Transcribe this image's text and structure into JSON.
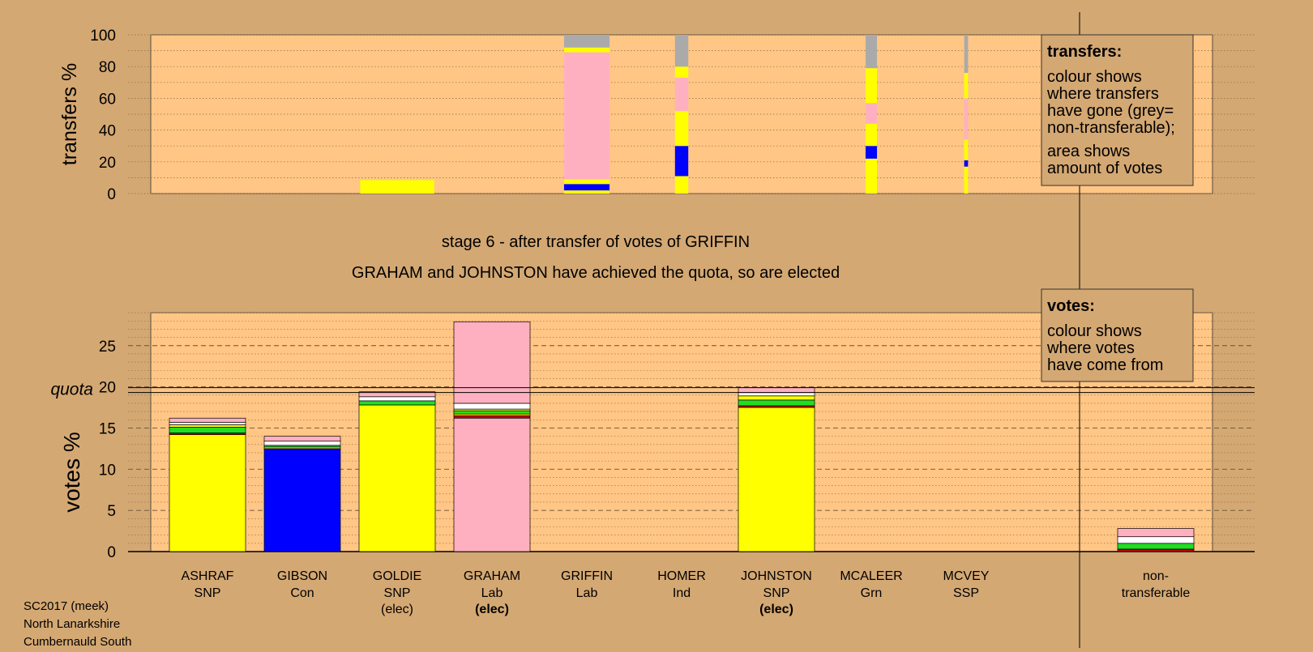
{
  "colors": {
    "page_bg": "#D4A873",
    "plot_bg": "#FFC685",
    "SNP": "#FFFF00",
    "Con": "#0000FF",
    "Lab": "#FFB0C0",
    "Grn": "#22DD22",
    "Ind": "#FFFFFF",
    "SSP": "#CC0000",
    "nontransferable": "#AAAAAA"
  },
  "texts": {
    "stage": "stage 6 - after transfer of votes of GRIFFIN",
    "elected": "GRAHAM and JOHNSTON have achieved the quota, so are elected",
    "quota_label": "quota",
    "transfers_ylabel": "transfers %",
    "votes_ylabel": "votes %",
    "transfers_legend_title": "transfers:",
    "transfers_legend_lines_a": [
      "colour shows",
      "where transfers",
      "have gone (grey=",
      "non-transferable);"
    ],
    "transfers_legend_lines_b": [
      "area shows",
      "amount of votes"
    ],
    "votes_legend_title": "votes:",
    "votes_legend_lines": [
      "colour shows",
      "where votes",
      "have come from"
    ],
    "footer": [
      "SC2017 (meek)",
      "North Lanarkshire",
      "Cumbernauld South"
    ]
  },
  "chart_data": [
    {
      "id": "transfers",
      "type": "bar",
      "ylabel": "transfers %",
      "ylim": [
        0,
        100
      ],
      "yticks": [
        0,
        20,
        40,
        60,
        80,
        100
      ],
      "grid": "dotted every 10",
      "legend_position": "top-right",
      "transfer_bars": [
        {
          "x_center": 3.0,
          "width_units": 0.78,
          "segments": [
            [
              "SNP",
              0,
              8.5
            ]
          ]
        },
        {
          "x_center": 5.0,
          "width_units": 0.48,
          "segments": [
            [
              "SNP",
              0,
              2
            ],
            [
              "Con",
              2,
              6
            ],
            [
              "SNP",
              6,
              9
            ],
            [
              "Lab",
              9,
              89
            ],
            [
              "SNP",
              89,
              92
            ],
            [
              "nontransferable",
              92,
              100
            ]
          ]
        },
        {
          "x_center": 6.0,
          "width_units": 0.14,
          "segments": [
            [
              "SNP",
              0,
              11
            ],
            [
              "Con",
              11,
              30
            ],
            [
              "SNP",
              30,
              52
            ],
            [
              "Lab",
              52,
              73
            ],
            [
              "SNP",
              73,
              80
            ],
            [
              "nontransferable",
              80,
              100
            ]
          ]
        },
        {
          "x_center": 8.0,
          "width_units": 0.12,
          "segments": [
            [
              "SNP",
              0,
              22
            ],
            [
              "Con",
              22,
              30
            ],
            [
              "SNP",
              30,
              44
            ],
            [
              "Lab",
              44,
              57
            ],
            [
              "SNP",
              57,
              79
            ],
            [
              "nontransferable",
              79,
              100
            ]
          ]
        },
        {
          "x_center": 9.0,
          "width_units": 0.04,
          "segments": [
            [
              "SNP",
              0,
              17
            ],
            [
              "Con",
              17,
              21
            ],
            [
              "SNP",
              21,
              34
            ],
            [
              "Lab",
              34,
              60
            ],
            [
              "SNP",
              60,
              76
            ],
            [
              "nontransferable",
              76,
              100
            ]
          ]
        }
      ]
    },
    {
      "id": "votes",
      "type": "bar",
      "ylabel": "votes %",
      "ylim": [
        0,
        29
      ],
      "yticks": [
        0,
        5,
        10,
        15,
        20,
        25
      ],
      "grid": "dashed every 5, dotted every 1",
      "quota": 19.6,
      "legend_position": "top-right",
      "categories": [
        {
          "name": "ASHRAF",
          "party": "SNP",
          "note": "",
          "note_bold": false,
          "segments": [
            [
              "SNP",
              14.2
            ],
            [
              "SSP",
              0.2
            ],
            [
              "Grn",
              0.7
            ],
            [
              "SNP",
              0.3
            ],
            [
              "Ind",
              0.3
            ],
            [
              "Lab",
              0.5
            ]
          ]
        },
        {
          "name": "GIBSON",
          "party": "Con",
          "note": "",
          "note_bold": false,
          "segments": [
            [
              "Con",
              12.5
            ],
            [
              "SNP",
              0.2
            ],
            [
              "Grn",
              0.2
            ],
            [
              "Ind",
              0.5
            ],
            [
              "Lab",
              0.6
            ]
          ]
        },
        {
          "name": "GOLDIE",
          "party": "SNP",
          "note": "(elec)",
          "note_bold": false,
          "segments": [
            [
              "SNP",
              17.8
            ],
            [
              "Grn",
              0.5
            ],
            [
              "Ind",
              0.5
            ],
            [
              "Lab",
              0.6
            ]
          ]
        },
        {
          "name": "GRAHAM",
          "party": "Lab",
          "note": "(elec)",
          "note_bold": true,
          "segments": [
            [
              "Lab",
              16.2
            ],
            [
              "SSP",
              0.3
            ],
            [
              "SNP",
              0.2
            ],
            [
              "Grn",
              0.4
            ],
            [
              "SNP",
              0.2
            ],
            [
              "Ind",
              0.7
            ],
            [
              "Lab",
              9.9
            ]
          ]
        },
        {
          "name": "GRIFFIN",
          "party": "Lab",
          "note": "",
          "note_bold": false,
          "segments": []
        },
        {
          "name": "HOMER",
          "party": "Ind",
          "note": "",
          "note_bold": false,
          "segments": []
        },
        {
          "name": "JOHNSTON",
          "party": "SNP",
          "note": "(elec)",
          "note_bold": true,
          "segments": [
            [
              "SNP",
              17.5
            ],
            [
              "SSP",
              0.2
            ],
            [
              "Grn",
              0.7
            ],
            [
              "SNP",
              0.5
            ],
            [
              "Ind",
              0.4
            ],
            [
              "Lab",
              0.6
            ]
          ]
        },
        {
          "name": "MCALEER",
          "party": "Grn",
          "note": "",
          "note_bold": false,
          "segments": []
        },
        {
          "name": "MCVEY",
          "party": "SSP",
          "note": "",
          "note_bold": false,
          "segments": []
        }
      ],
      "nontransferable": {
        "label_lines": [
          "non-",
          "transferable"
        ],
        "segments": [
          [
            "SSP",
            0.3
          ],
          [
            "Grn",
            0.7
          ],
          [
            "Ind",
            0.8
          ],
          [
            "Lab",
            1.0
          ]
        ]
      }
    }
  ]
}
